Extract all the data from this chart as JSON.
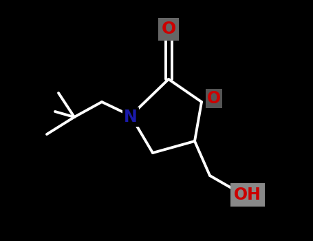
{
  "bg_color": "#000000",
  "bond_color": "#ffffff",
  "N_color": "#1a1aaa",
  "O_color": "#cc0000",
  "label_O_carbonyl": "O",
  "label_N": "N",
  "label_O_ring": "O",
  "label_OH": "OH",
  "figsize": [
    4.55,
    3.5
  ],
  "dpi": 100,
  "lw": 2.8
}
